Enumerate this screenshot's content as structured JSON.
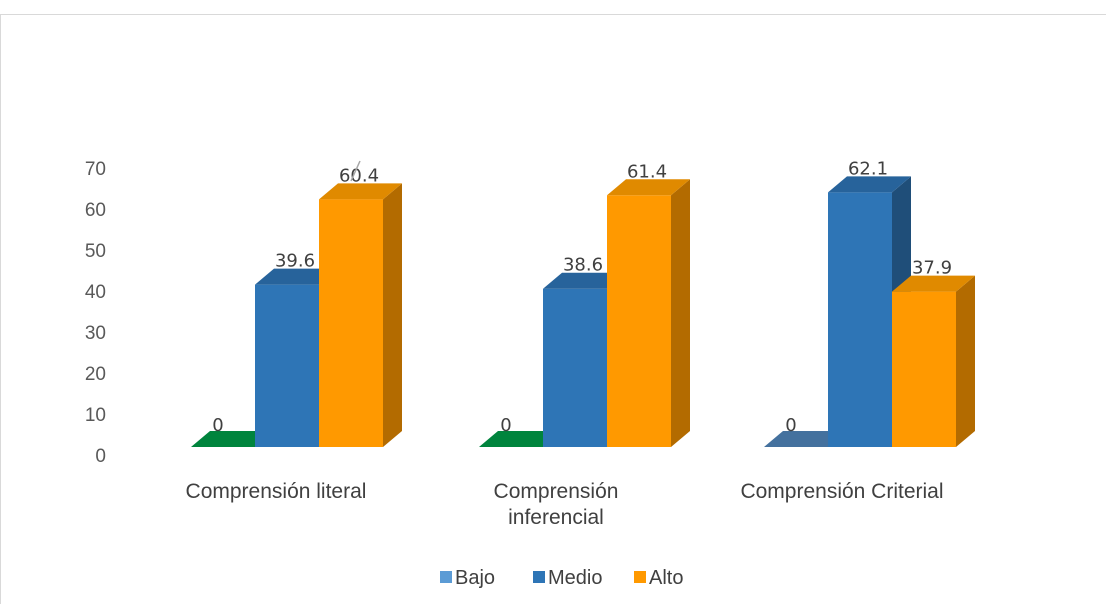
{
  "chart_data": {
    "type": "bar",
    "style": "3d-clustered-column",
    "title": "",
    "xlabel": "",
    "ylabel": "",
    "ylim": [
      0,
      70
    ],
    "yticks": [
      0,
      10,
      20,
      30,
      40,
      50,
      60,
      70
    ],
    "grid": false,
    "legend": "bottom",
    "categories": [
      [
        "Comprensión literal"
      ],
      [
        "Comprensión",
        "inferencial"
      ],
      [
        "Comprensión Criterial"
      ]
    ],
    "series": [
      {
        "name": "Bajo",
        "values": [
          0,
          0,
          0
        ],
        "color": "#5b9bd5",
        "zero_colors": [
          "#00843d",
          "#00843d",
          "#44719e"
        ]
      },
      {
        "name": "Medio",
        "values": [
          39.6,
          38.6,
          62.1
        ],
        "color": "#2e75b6",
        "side": "#1f4e79"
      },
      {
        "name": "Alto",
        "values": [
          60.4,
          61.4,
          37.9
        ],
        "color": "#ff9900",
        "side": "#b36b00",
        "top": "#e08a00"
      }
    ]
  }
}
